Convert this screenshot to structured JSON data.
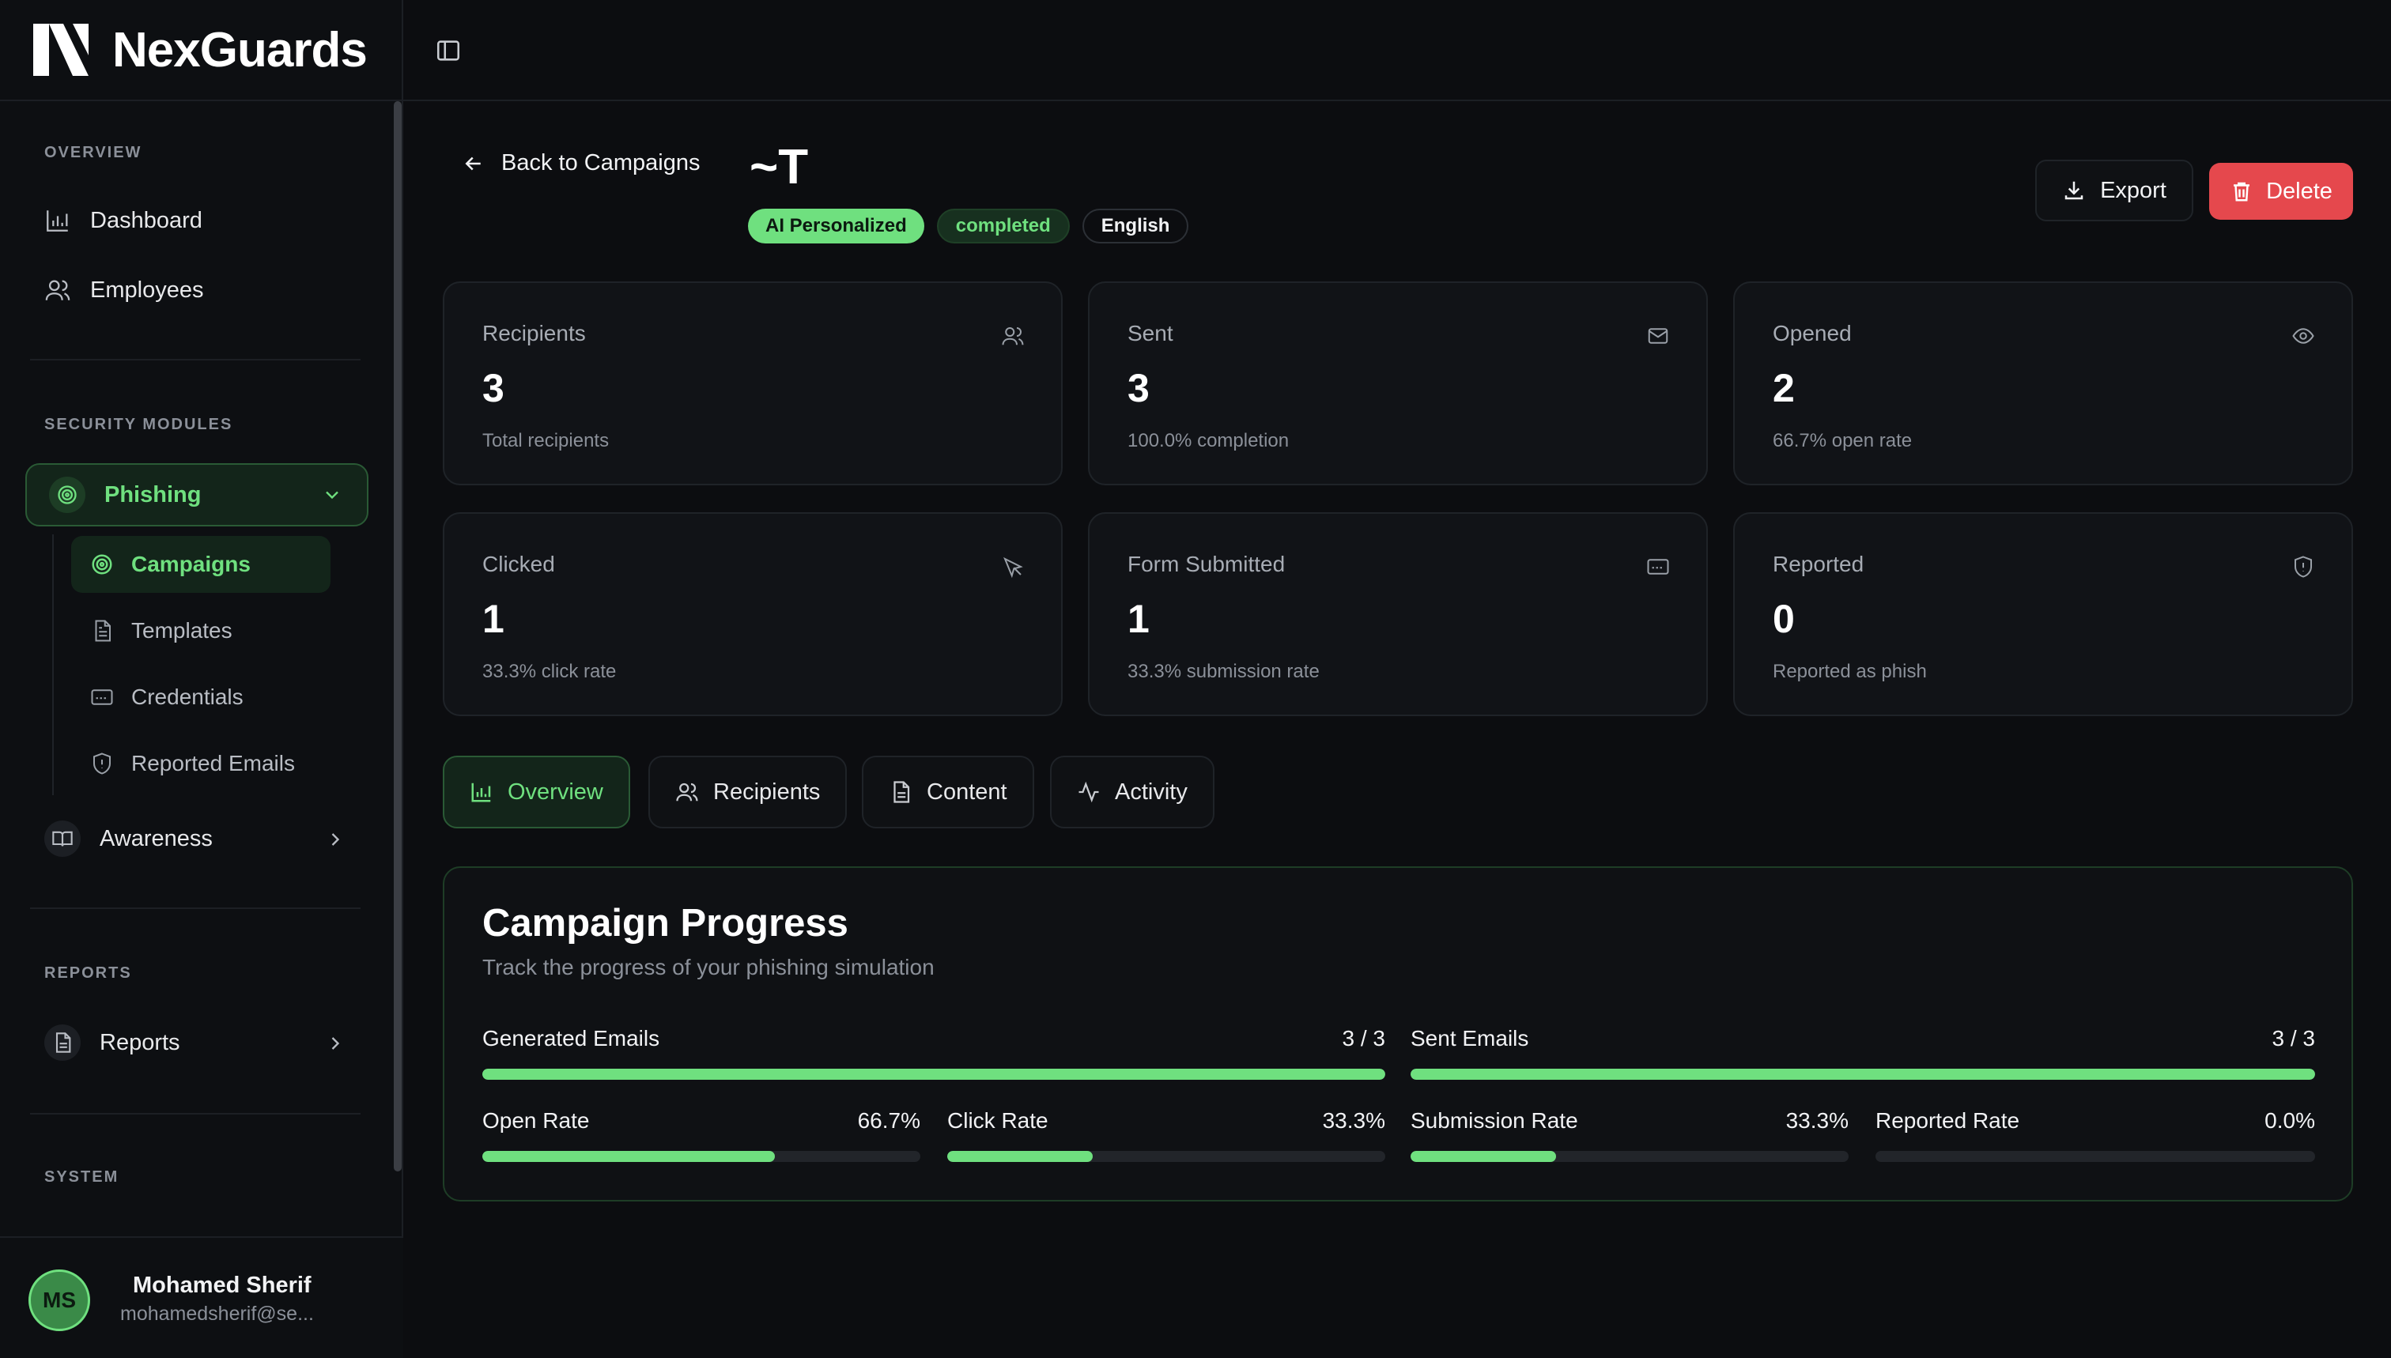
{
  "brand": {
    "name": "NexGuards"
  },
  "sidebar": {
    "sections": {
      "overview": "OVERVIEW",
      "security": "SECURITY MODULES",
      "reports": "REPORTS",
      "system": "SYSTEM"
    },
    "items": {
      "dashboard": "Dashboard",
      "employees": "Employees",
      "phishing": "Phishing",
      "campaigns": "Campaigns",
      "templates": "Templates",
      "credentials": "Credentials",
      "reported_emails": "Reported Emails",
      "awareness": "Awareness",
      "reports": "Reports"
    }
  },
  "user": {
    "initials": "MS",
    "name": "Mohamed Sherif",
    "email": "mohamedsherif@se..."
  },
  "header": {
    "back_label": "Back to Campaigns",
    "campaign_title": "~T",
    "badges": {
      "ai": "AI Personalized",
      "status": "completed",
      "language": "English"
    },
    "export_label": "Export",
    "delete_label": "Delete"
  },
  "stats": {
    "recipients": {
      "label": "Recipients",
      "value": "3",
      "sub": "Total recipients"
    },
    "sent": {
      "label": "Sent",
      "value": "3",
      "sub": "100.0% completion"
    },
    "opened": {
      "label": "Opened",
      "value": "2",
      "sub": "66.7% open rate"
    },
    "clicked": {
      "label": "Clicked",
      "value": "1",
      "sub": "33.3% click rate"
    },
    "form_submitted": {
      "label": "Form Submitted",
      "value": "1",
      "sub": "33.3% submission rate"
    },
    "reported": {
      "label": "Reported",
      "value": "0",
      "sub": "Reported as phish"
    }
  },
  "tabs": {
    "overview": "Overview",
    "recipients": "Recipients",
    "content": "Content",
    "activity": "Activity"
  },
  "progress": {
    "title": "Campaign Progress",
    "subtitle": "Track the progress of your phishing simulation",
    "generated": {
      "label": "Generated Emails",
      "value": "3 / 3",
      "fraction": 1.0
    },
    "sent": {
      "label": "Sent Emails",
      "value": "3 / 3",
      "fraction": 1.0
    },
    "open_rate": {
      "label": "Open Rate",
      "value": "66.7%",
      "fraction": 0.667
    },
    "click_rate": {
      "label": "Click Rate",
      "value": "33.3%",
      "fraction": 0.333
    },
    "submission_rate": {
      "label": "Submission Rate",
      "value": "33.3%",
      "fraction": 0.333
    },
    "reported_rate": {
      "label": "Reported Rate",
      "value": "0.0%",
      "fraction": 0.0
    }
  },
  "colors": {
    "accent": "#6fe07f",
    "danger": "#e5484d",
    "background": "#0c0d10"
  }
}
